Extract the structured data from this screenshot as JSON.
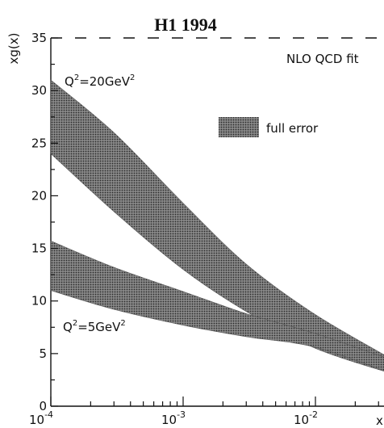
{
  "chart_data": {
    "type": "area",
    "title": "H1 1994",
    "ylabel": "xg(x)",
    "xlabel": "x",
    "x_scale": "log",
    "xlim": [
      0.0001,
      0.04
    ],
    "ylim": [
      0,
      35
    ],
    "x_ticks": [
      {
        "value": 0.0001,
        "base": "10",
        "exp": "-4"
      },
      {
        "value": 0.001,
        "base": "10",
        "exp": "-3"
      },
      {
        "value": 0.01,
        "base": "10",
        "exp": "-2"
      }
    ],
    "y_ticks": [
      0,
      5,
      10,
      15,
      20,
      25,
      30,
      35
    ],
    "fit_label": "NLO QCD fit",
    "legend": {
      "label": "full error",
      "placement": "upper-right"
    },
    "band_color": "#555555",
    "series": [
      {
        "name": "Q²=20GeV²",
        "x": [
          0.0001,
          0.0003,
          0.001,
          0.003,
          0.01,
          0.04
        ],
        "upper": [
          31,
          26,
          19.3,
          13.5,
          8.7,
          4.3
        ],
        "lower": [
          24,
          18.5,
          13,
          9,
          5.5,
          3
        ]
      },
      {
        "name": "Q²=5GeV²",
        "x": [
          0.0001,
          0.0003,
          0.001,
          0.003,
          0.01,
          0.04
        ],
        "upper": [
          15.7,
          13.2,
          10.9,
          8.8,
          6.9,
          4.3
        ],
        "lower": [
          11,
          9.2,
          7.7,
          6.6,
          5.6,
          3
        ]
      }
    ]
  },
  "labels": {
    "title": "H1 1994",
    "ylabel": "xg(x)",
    "xlabel": "x",
    "fit_label": "NLO QCD fit",
    "legend_label": "full error",
    "q20_prefix": "Q",
    "q20_sup1": "2",
    "q20_mid": "=20GeV",
    "q20_sup2": "2",
    "q5_prefix": "Q",
    "q5_sup1": "2",
    "q5_mid": "=5GeV",
    "q5_sup2": "2"
  }
}
